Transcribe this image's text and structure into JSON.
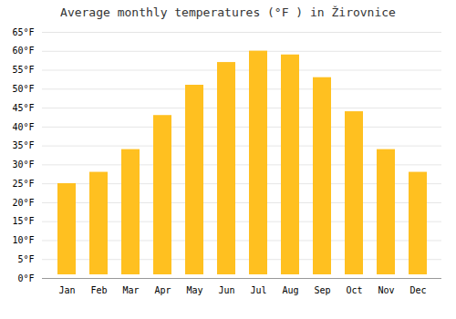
{
  "chart_data": {
    "type": "bar",
    "title": "Average monthly temperatures (°F ) in Žirovnice",
    "categories": [
      "Jan",
      "Feb",
      "Mar",
      "Apr",
      "May",
      "Jun",
      "Jul",
      "Aug",
      "Sep",
      "Oct",
      "Nov",
      "Dec"
    ],
    "values": [
      26,
      29,
      35,
      44,
      52,
      58,
      61,
      60,
      54,
      45,
      35,
      29
    ],
    "color": "#FFC020",
    "ylim": [
      0,
      65
    ],
    "yticks": [
      {
        "value": 0,
        "label": "0°F"
      },
      {
        "value": 5,
        "label": "5°F"
      },
      {
        "value": 10,
        "label": "10°F"
      },
      {
        "value": 15,
        "label": "15°F"
      },
      {
        "value": 20,
        "label": "20°F"
      },
      {
        "value": 25,
        "label": "25°F"
      },
      {
        "value": 30,
        "label": "30°F"
      },
      {
        "value": 35,
        "label": "35°F"
      },
      {
        "value": 40,
        "label": "40°F"
      },
      {
        "value": 45,
        "label": "45°F"
      },
      {
        "value": 50,
        "label": "50°F"
      },
      {
        "value": 55,
        "label": "55°F"
      },
      {
        "value": 60,
        "label": "60°F"
      },
      {
        "value": 65,
        "label": "65°F"
      }
    ],
    "grid": true
  }
}
